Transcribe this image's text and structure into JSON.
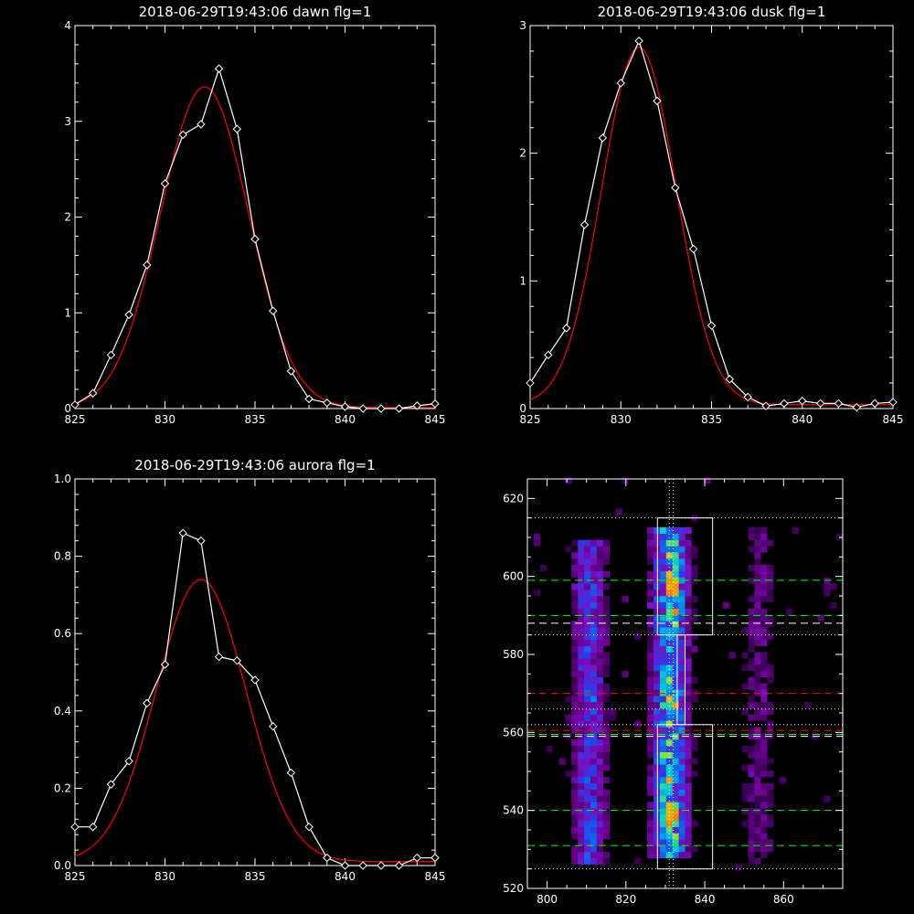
{
  "chart_data": [
    {
      "type": "line",
      "title": "2018-06-29T19:43:06 dawn flg=1",
      "xlim": [
        825,
        845
      ],
      "ylim": [
        0,
        4
      ],
      "xticks": [
        "825",
        "830",
        "835",
        "840",
        "845"
      ],
      "yticks": [
        "0",
        "1",
        "2",
        "3",
        "4"
      ],
      "colors": {
        "data": "#ffffff",
        "fit": "#ff0000"
      },
      "series": [
        {
          "role": "data",
          "x": [
            825,
            826,
            827,
            828,
            829,
            830,
            831,
            832,
            833,
            834,
            835,
            836,
            837,
            838,
            839,
            840,
            841,
            842,
            843,
            844,
            845
          ],
          "y": [
            0.04,
            0.16,
            0.56,
            0.98,
            1.5,
            2.35,
            2.86,
            2.97,
            3.55,
            2.92,
            1.77,
            1.02,
            0.39,
            0.1,
            0.06,
            0.02,
            0.0,
            0.0,
            0.0,
            0.03,
            0.05
          ]
        },
        {
          "role": "fit",
          "gaussian": {
            "amplitude": 3.35,
            "center": 832.2,
            "sigma": 2.45,
            "offset": 0.01
          }
        }
      ]
    },
    {
      "type": "line",
      "title": "2018-06-29T19:43:06 dusk flg=1",
      "xlim": [
        825,
        845
      ],
      "ylim": [
        0,
        3
      ],
      "xticks": [
        "825",
        "830",
        "835",
        "840",
        "845"
      ],
      "yticks": [
        "0",
        "1",
        "2",
        "3"
      ],
      "colors": {
        "data": "#ffffff",
        "fit": "#ff0000"
      },
      "series": [
        {
          "role": "data",
          "x": [
            825,
            826,
            827,
            828,
            829,
            830,
            831,
            832,
            833,
            834,
            835,
            836,
            837,
            838,
            839,
            840,
            841,
            842,
            843,
            844,
            845
          ],
          "y": [
            0.2,
            0.42,
            0.63,
            1.44,
            2.12,
            2.55,
            2.88,
            2.41,
            1.73,
            1.25,
            0.65,
            0.23,
            0.09,
            0.02,
            0.04,
            0.06,
            0.04,
            0.04,
            0.01,
            0.04,
            0.05
          ]
        },
        {
          "role": "fit",
          "gaussian": {
            "amplitude": 2.8,
            "center": 831.0,
            "sigma": 2.05,
            "offset": 0.03
          }
        }
      ]
    },
    {
      "type": "line",
      "title": "2018-06-29T19:43:06 aurora flg=1",
      "xlim": [
        825,
        845
      ],
      "ylim": [
        0,
        1
      ],
      "xticks": [
        "825",
        "830",
        "835",
        "840",
        "845"
      ],
      "yticks": [
        "0.0",
        "0.2",
        "0.4",
        "0.6",
        "0.8",
        "1.0"
      ],
      "colors": {
        "data": "#ffffff",
        "fit": "#ff0000"
      },
      "series": [
        {
          "role": "data",
          "x": [
            825,
            826,
            827,
            828,
            829,
            830,
            831,
            832,
            833,
            834,
            835,
            836,
            837,
            838,
            839,
            840,
            841,
            842,
            843,
            844,
            845
          ],
          "y": [
            0.1,
            0.1,
            0.21,
            0.27,
            0.42,
            0.52,
            0.86,
            0.84,
            0.54,
            0.53,
            0.48,
            0.36,
            0.24,
            0.1,
            0.02,
            0.0,
            0.0,
            0.0,
            0.0,
            0.02,
            0.02
          ]
        },
        {
          "role": "fit",
          "gaussian": {
            "amplitude": 0.73,
            "center": 832.0,
            "sigma": 2.5,
            "offset": 0.01
          }
        }
      ]
    },
    {
      "type": "heatmap",
      "xlim": [
        795,
        875
      ],
      "ylim": [
        520,
        625
      ],
      "xticks": [
        "800",
        "820",
        "840",
        "860"
      ],
      "yticks": [
        "520",
        "540",
        "560",
        "580",
        "600",
        "620"
      ],
      "colors": {
        "box": "#ffffff",
        "green": "#00ff00",
        "red": "#ff0000",
        "white_dotted": "#ffffff"
      },
      "emission_columns": [
        {
          "x_center": 810,
          "x_width": 3,
          "y_ranges": [
            [
              525,
              608
            ],
            [
              585,
              602
            ]
          ],
          "peak": 0.55
        },
        {
          "x_center": 830.5,
          "x_width": 3,
          "y_ranges": [
            [
              527,
              612
            ]
          ],
          "peak": 1.0
        },
        {
          "x_center": 853,
          "x_width": 3,
          "y_ranges": [
            [
              525,
              612
            ]
          ],
          "peak": 0.25
        }
      ],
      "hot_spots": [
        {
          "x": 830.5,
          "y": 597,
          "level": "orange"
        },
        {
          "x": 830.5,
          "y": 538,
          "level": "orange"
        }
      ],
      "boxes": [
        {
          "x": [
            828,
            842
          ],
          "y": [
            585,
            615
          ]
        },
        {
          "x": [
            828,
            842
          ],
          "y": [
            525,
            562
          ]
        },
        {
          "x": [
            833,
            835
          ],
          "y": [
            562,
            585
          ]
        }
      ],
      "green_dashed_y": [
        599,
        590,
        559.5,
        540,
        531
      ],
      "red_dashed_y": [
        570,
        560.5
      ],
      "white_dashed_y": [
        588,
        559
      ],
      "white_dotted_y": [
        615,
        585,
        566,
        562,
        525
      ],
      "white_dotted_x": [
        831,
        832
      ]
    }
  ]
}
